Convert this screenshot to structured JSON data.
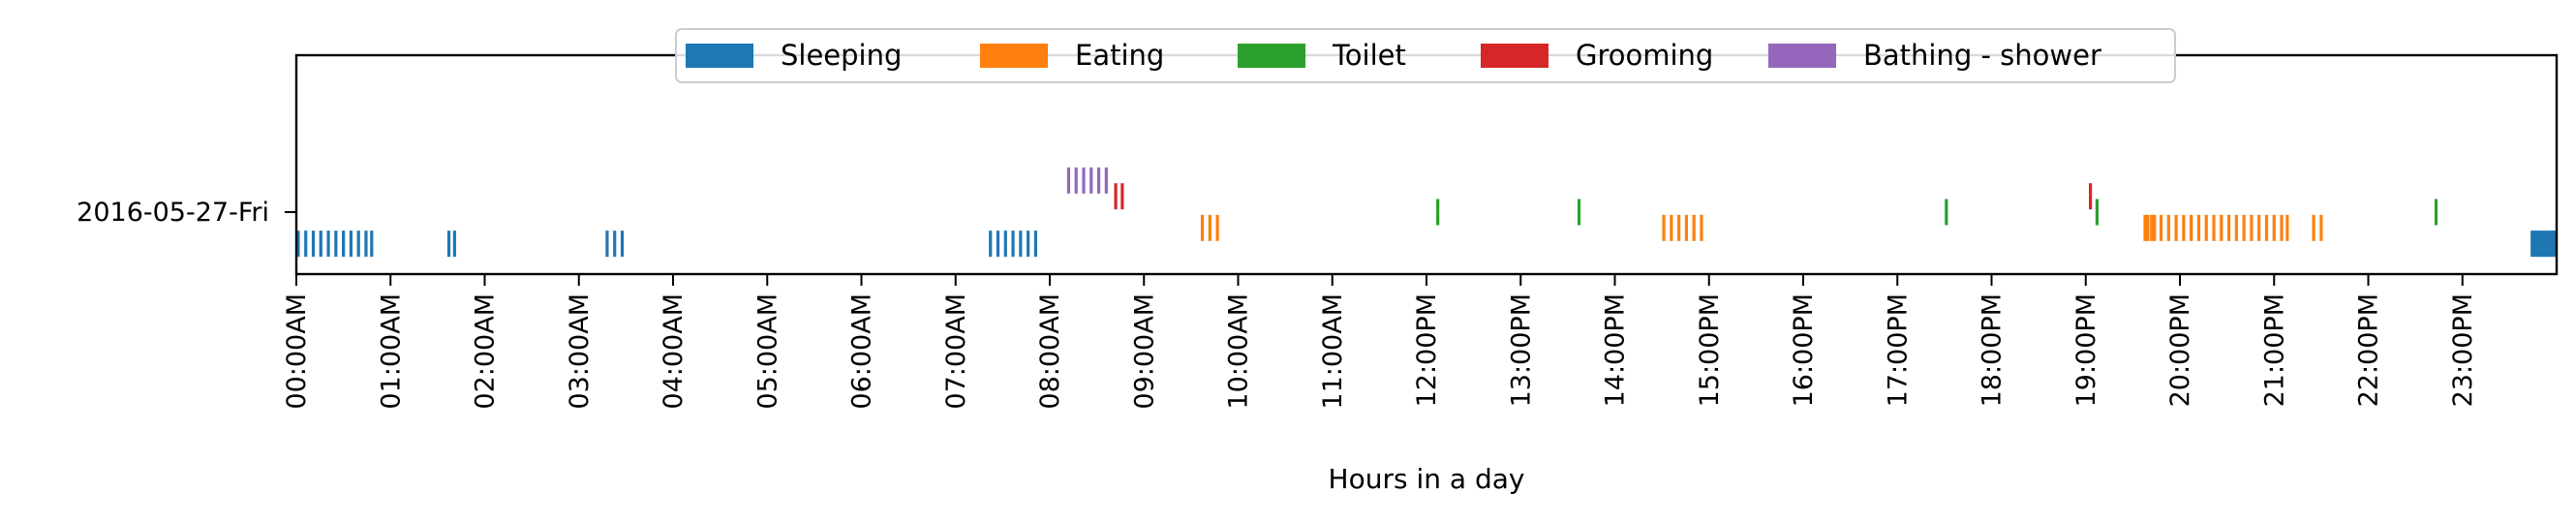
{
  "chart_data": {
    "type": "event-timeline",
    "xlabel": "Hours in a day",
    "xlim": [
      0,
      24
    ],
    "x_unit": "hour",
    "x_tick_labels": [
      "00:00AM",
      "01:00AM",
      "02:00AM",
      "03:00AM",
      "04:00AM",
      "05:00AM",
      "06:00AM",
      "07:00AM",
      "08:00AM",
      "09:00AM",
      "10:00AM",
      "11:00AM",
      "12:00PM",
      "13:00PM",
      "14:00PM",
      "15:00PM",
      "16:00PM",
      "17:00PM",
      "18:00PM",
      "19:00PM",
      "20:00PM",
      "21:00PM",
      "22:00PM",
      "23:00PM"
    ],
    "y_categories": [
      "2016-05-27-Fri"
    ],
    "legend_position": "top-center",
    "grid": false,
    "series": [
      {
        "name": "Sleeping",
        "color": "#1f77b4",
        "row_offset": -0.34,
        "events": [
          0.02,
          0.1,
          0.18,
          0.26,
          0.34,
          0.42,
          0.5,
          0.58,
          0.66,
          0.74,
          0.8,
          1.62,
          1.68,
          3.3,
          3.38,
          3.46,
          7.37,
          7.45,
          7.53,
          7.61,
          7.69,
          7.77,
          7.85,
          23.74,
          23.76,
          23.78,
          23.8,
          23.82,
          23.84,
          23.86,
          23.88,
          23.9,
          23.92,
          23.94,
          23.96,
          23.98
        ]
      },
      {
        "name": "Eating",
        "color": "#ff7f0e",
        "row_offset": -0.17,
        "events": [
          9.62,
          9.7,
          9.78,
          14.52,
          14.6,
          14.68,
          14.76,
          14.84,
          14.92,
          19.63,
          19.66,
          19.7,
          19.73,
          19.8,
          19.88,
          19.96,
          20.04,
          20.12,
          20.2,
          20.28,
          20.36,
          20.44,
          20.52,
          20.6,
          20.68,
          20.76,
          20.84,
          20.92,
          21.0,
          21.08,
          21.14,
          21.42,
          21.5
        ]
      },
      {
        "name": "Toilet",
        "color": "#2ca02c",
        "row_offset": 0.0,
        "events": [
          12.12,
          13.62,
          17.52,
          19.12,
          22.72
        ]
      },
      {
        "name": "Grooming",
        "color": "#d62728",
        "row_offset": 0.17,
        "events": [
          8.7,
          8.77,
          19.05
        ]
      },
      {
        "name": "Bathing - shower",
        "color": "#9467bd",
        "row_offset": 0.34,
        "events": [
          8.2,
          8.28,
          8.36,
          8.44,
          8.52,
          8.6
        ]
      }
    ]
  }
}
